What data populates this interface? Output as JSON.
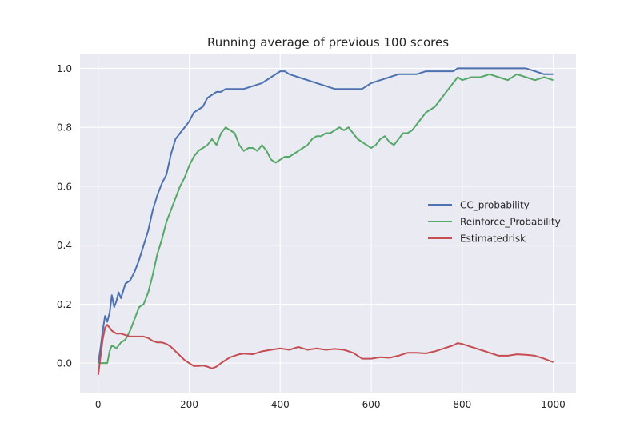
{
  "chart_data": {
    "type": "line",
    "title": "Running average of previous 100 scores",
    "xlabel": "",
    "ylabel": "",
    "xlim": [
      -40,
      1050
    ],
    "ylim": [
      -0.1,
      1.05
    ],
    "xticks": [
      0,
      200,
      400,
      600,
      800,
      1000
    ],
    "yticks": [
      0.0,
      0.2,
      0.4,
      0.6,
      0.8,
      1.0
    ],
    "xtick_labels": [
      "0",
      "200",
      "400",
      "600",
      "800",
      "1000"
    ],
    "ytick_labels": [
      "0.0",
      "0.2",
      "0.4",
      "0.6",
      "0.8",
      "1.0"
    ],
    "grid": true,
    "legend_position": "center-right",
    "colors": {
      "background": "#eaeaf2",
      "grid": "#ffffff",
      "series": [
        "#4c72b0",
        "#55a868",
        "#c44e52"
      ]
    },
    "series": [
      {
        "name": "CC_probability",
        "x": [
          0,
          5,
          10,
          15,
          20,
          25,
          30,
          35,
          40,
          45,
          50,
          60,
          70,
          80,
          90,
          100,
          110,
          120,
          130,
          140,
          150,
          160,
          170,
          180,
          190,
          200,
          210,
          220,
          230,
          240,
          250,
          260,
          270,
          280,
          290,
          300,
          320,
          340,
          360,
          380,
          400,
          410,
          420,
          440,
          460,
          480,
          500,
          520,
          540,
          560,
          580,
          600,
          620,
          640,
          660,
          680,
          700,
          720,
          740,
          760,
          780,
          790,
          800,
          820,
          840,
          860,
          880,
          900,
          920,
          940,
          960,
          980,
          1000
        ],
        "values": [
          0.0,
          0.05,
          0.11,
          0.16,
          0.14,
          0.17,
          0.23,
          0.19,
          0.21,
          0.24,
          0.22,
          0.27,
          0.28,
          0.31,
          0.35,
          0.4,
          0.45,
          0.52,
          0.57,
          0.61,
          0.64,
          0.71,
          0.76,
          0.78,
          0.8,
          0.82,
          0.85,
          0.86,
          0.87,
          0.9,
          0.91,
          0.92,
          0.92,
          0.93,
          0.93,
          0.93,
          0.93,
          0.94,
          0.95,
          0.97,
          0.99,
          0.99,
          0.98,
          0.97,
          0.96,
          0.95,
          0.94,
          0.93,
          0.93,
          0.93,
          0.93,
          0.95,
          0.96,
          0.97,
          0.98,
          0.98,
          0.98,
          0.99,
          0.99,
          0.99,
          0.99,
          1.0,
          1.0,
          1.0,
          1.0,
          1.0,
          1.0,
          1.0,
          1.0,
          1.0,
          0.99,
          0.98,
          0.98
        ]
      },
      {
        "name": "Reinforce_Probability",
        "x": [
          0,
          10,
          20,
          25,
          30,
          40,
          50,
          60,
          70,
          80,
          90,
          100,
          110,
          120,
          130,
          140,
          150,
          160,
          170,
          180,
          190,
          200,
          210,
          220,
          230,
          240,
          250,
          260,
          270,
          280,
          290,
          300,
          310,
          320,
          330,
          340,
          350,
          360,
          370,
          380,
          390,
          400,
          410,
          420,
          430,
          440,
          450,
          460,
          470,
          480,
          490,
          500,
          510,
          520,
          530,
          540,
          550,
          560,
          570,
          580,
          590,
          600,
          610,
          620,
          630,
          640,
          650,
          660,
          670,
          680,
          690,
          700,
          710,
          720,
          730,
          740,
          750,
          760,
          770,
          780,
          790,
          800,
          820,
          840,
          860,
          880,
          900,
          920,
          940,
          960,
          980,
          1000
        ],
        "values": [
          0.0,
          0.0,
          0.0,
          0.04,
          0.06,
          0.05,
          0.07,
          0.08,
          0.11,
          0.15,
          0.19,
          0.2,
          0.24,
          0.3,
          0.37,
          0.42,
          0.48,
          0.52,
          0.56,
          0.6,
          0.63,
          0.67,
          0.7,
          0.72,
          0.73,
          0.74,
          0.76,
          0.74,
          0.78,
          0.8,
          0.79,
          0.78,
          0.74,
          0.72,
          0.73,
          0.73,
          0.72,
          0.74,
          0.72,
          0.69,
          0.68,
          0.69,
          0.7,
          0.7,
          0.71,
          0.72,
          0.73,
          0.74,
          0.76,
          0.77,
          0.77,
          0.78,
          0.78,
          0.79,
          0.8,
          0.79,
          0.8,
          0.78,
          0.76,
          0.75,
          0.74,
          0.73,
          0.74,
          0.76,
          0.77,
          0.75,
          0.74,
          0.76,
          0.78,
          0.78,
          0.79,
          0.81,
          0.83,
          0.85,
          0.86,
          0.87,
          0.89,
          0.91,
          0.93,
          0.95,
          0.97,
          0.96,
          0.97,
          0.97,
          0.98,
          0.97,
          0.96,
          0.98,
          0.97,
          0.96,
          0.97,
          0.96
        ]
      },
      {
        "name": "Estimatedrisk",
        "x": [
          0,
          5,
          10,
          15,
          20,
          25,
          30,
          40,
          50,
          60,
          70,
          80,
          90,
          100,
          110,
          120,
          130,
          140,
          150,
          160,
          170,
          180,
          190,
          200,
          210,
          220,
          230,
          240,
          250,
          260,
          270,
          280,
          290,
          300,
          310,
          320,
          340,
          360,
          380,
          400,
          420,
          440,
          460,
          480,
          500,
          520,
          540,
          560,
          580,
          600,
          620,
          640,
          660,
          680,
          700,
          720,
          740,
          760,
          780,
          790,
          800,
          820,
          840,
          860,
          880,
          900,
          920,
          940,
          960,
          980,
          1000
        ],
        "values": [
          -0.04,
          0.02,
          0.08,
          0.12,
          0.13,
          0.12,
          0.11,
          0.1,
          0.1,
          0.095,
          0.09,
          0.09,
          0.09,
          0.09,
          0.085,
          0.075,
          0.07,
          0.07,
          0.065,
          0.055,
          0.04,
          0.025,
          0.01,
          0.0,
          -0.01,
          -0.01,
          -0.008,
          -0.012,
          -0.018,
          -0.012,
          0.0,
          0.01,
          0.02,
          0.025,
          0.03,
          0.032,
          0.03,
          0.04,
          0.045,
          0.05,
          0.045,
          0.055,
          0.045,
          0.05,
          0.045,
          0.048,
          0.045,
          0.035,
          0.015,
          0.015,
          0.02,
          0.018,
          0.025,
          0.035,
          0.035,
          0.033,
          0.04,
          0.05,
          0.06,
          0.068,
          0.065,
          0.055,
          0.045,
          0.035,
          0.025,
          0.025,
          0.03,
          0.028,
          0.025,
          0.015,
          0.003
        ]
      }
    ]
  }
}
